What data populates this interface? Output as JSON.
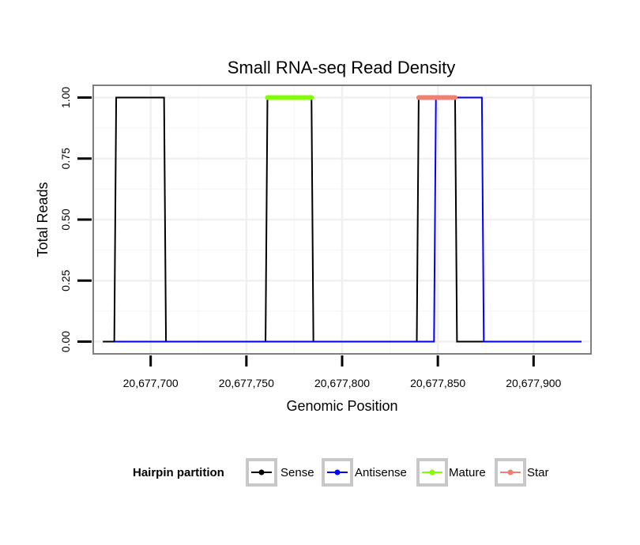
{
  "chart_data": {
    "type": "line",
    "title": "Small RNA-seq Read Density",
    "xlabel": "Genomic Position",
    "ylabel": "Total Reads",
    "xlim": [
      20677670,
      20677930
    ],
    "ylim": [
      -0.05,
      1.05
    ],
    "x_ticks": [
      20677700,
      20677750,
      20677800,
      20677850,
      20677900
    ],
    "x_tick_labels": [
      "20,677,700",
      "20,677,750",
      "20,677,800",
      "20,677,850",
      "20,677,900"
    ],
    "y_ticks": [
      0,
      0.25,
      0.5,
      0.75,
      1
    ],
    "y_tick_labels": [
      "0.00",
      "0.25",
      "0.50",
      "0.75",
      "1.00"
    ],
    "grid": true,
    "series": [
      {
        "name": "Sense",
        "color": "#000000",
        "x": [
          20677675,
          20677681,
          20677682,
          20677707,
          20677708,
          20677760,
          20677761,
          20677784,
          20677785,
          20677839,
          20677840,
          20677859,
          20677860,
          20677925
        ],
        "y": [
          0,
          0,
          1,
          1,
          0,
          0,
          1,
          1,
          0,
          0,
          1,
          1,
          0,
          0
        ]
      },
      {
        "name": "Antisense",
        "color": "#0000FF",
        "x": [
          20677681,
          20677848,
          20677849,
          20677873,
          20677874,
          20677925
        ],
        "y": [
          0,
          0,
          1,
          1,
          0,
          0
        ]
      },
      {
        "name": "Mature",
        "color": "#80FF00",
        "x": [
          20677761,
          20677784
        ],
        "y": [
          1,
          1
        ]
      },
      {
        "name": "Star",
        "color": "#F08070",
        "x": [
          20677840,
          20677859
        ],
        "y": [
          1,
          1
        ]
      }
    ],
    "legend": {
      "title": "Hairpin partition",
      "position": "bottom",
      "entries": [
        "Sense",
        "Antisense",
        "Mature",
        "Star"
      ]
    }
  }
}
